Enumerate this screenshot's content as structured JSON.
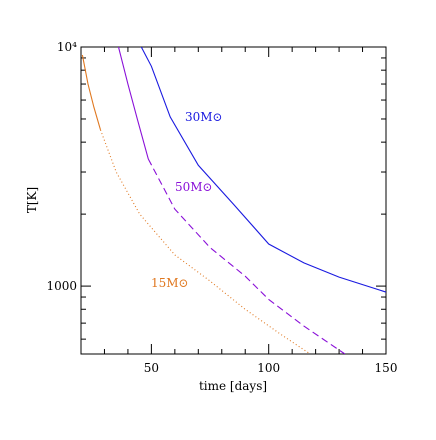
{
  "chart_data": {
    "type": "line",
    "xlabel": "time [days]",
    "ylabel": "T[K]",
    "xlim": [
      20,
      150
    ],
    "ylim": [
      520,
      10000
    ],
    "ylog": true,
    "xticks": [
      50,
      100,
      150
    ],
    "xminorticks": [
      20,
      30,
      40,
      60,
      70,
      80,
      90,
      110,
      120,
      130,
      140
    ],
    "yticks": [
      1000,
      {
        "value": 10000,
        "label": "10⁴"
      }
    ],
    "yminorticks": [
      600,
      700,
      800,
      900,
      2000,
      3000,
      4000,
      5000,
      6000,
      7000,
      8000,
      9000
    ],
    "series": [
      {
        "name": "30M⊙",
        "color": "#1a1ae0",
        "style": "solid",
        "x": [
          45.7,
          50,
          58,
          70,
          85,
          100,
          115,
          130,
          150
        ],
        "values": [
          10000,
          8300,
          5100,
          3200,
          2200,
          1500,
          1250,
          1090,
          944
        ]
      },
      {
        "name": "50M⊙",
        "color": "#8a10d8",
        "style": "solid",
        "x": [
          36,
          40,
          44,
          48.7
        ],
        "values": [
          10000,
          7000,
          5000,
          3400
        ]
      },
      {
        "color": "#8a10d8",
        "style": "dashed",
        "x": [
          48.7,
          60,
          75,
          90,
          100,
          115,
          132.5
        ],
        "values": [
          3400,
          2100,
          1450,
          1100,
          880,
          680,
          520
        ]
      },
      {
        "name": "15M⊙",
        "color": "#e07820",
        "style": "solid",
        "x": [
          20.6,
          23,
          25.5,
          28.3
        ],
        "values": [
          9260,
          7000,
          5600,
          4500
        ]
      },
      {
        "color": "#e07820",
        "style": "dotted",
        "x": [
          28.3,
          35,
          45,
          60,
          75,
          90,
          105,
          117.7
        ],
        "values": [
          4500,
          3000,
          2000,
          1350,
          1050,
          800,
          630,
          520
        ]
      }
    ]
  }
}
